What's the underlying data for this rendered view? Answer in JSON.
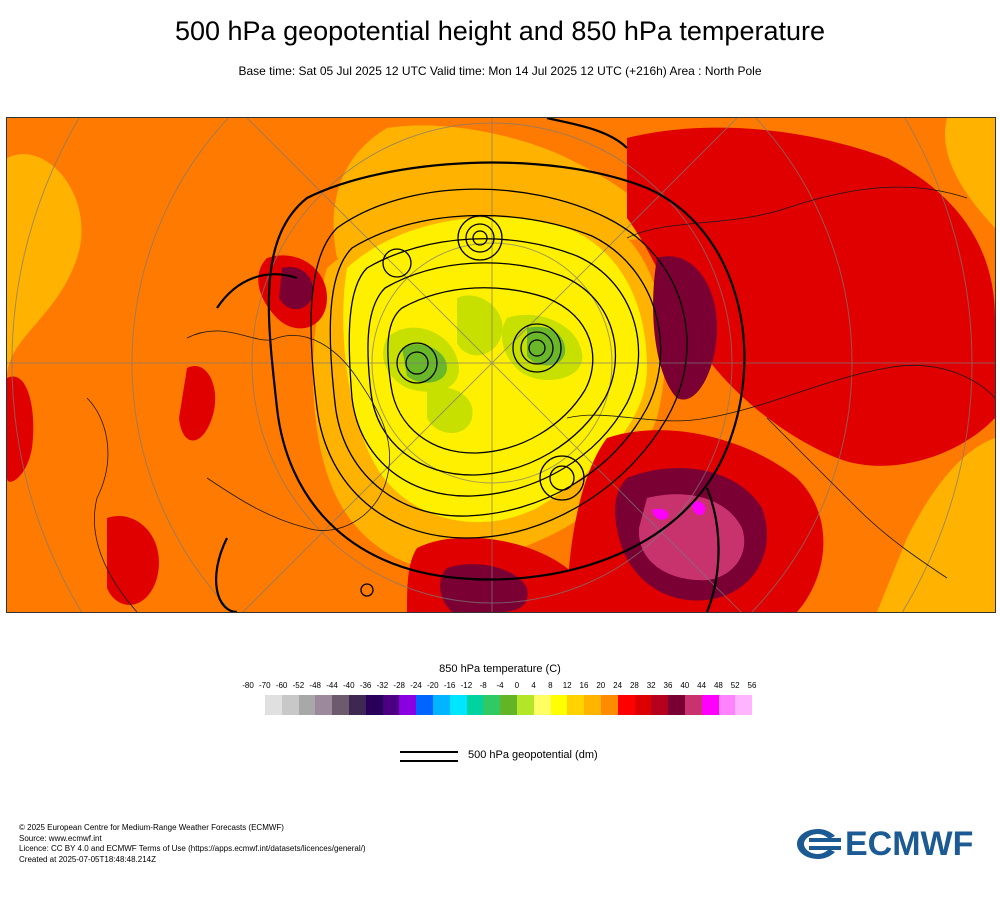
{
  "header": {
    "title": "500 hPa geopotential height and 850 hPa temperature",
    "subtitle": "Base time: Sat 05 Jul 2025 12 UTC Valid time: Mon 14 Jul 2025 12 UTC (+216h) Area : North Pole"
  },
  "map": {
    "area": "North Pole",
    "temperature_fill_colors": {
      "very_hot": "#7a0033",
      "hot": "#e00000",
      "warm": "#ff7a00",
      "mild": "#ffb300",
      "cool": "#fff000",
      "cold": "#c8e000",
      "very_cold": "#6ab82a",
      "extreme_hot": "#c8336e",
      "magenta": "#ff00ff"
    },
    "contour_color": "#000000"
  },
  "legend": {
    "temperature_title": "850 hPa temperature (C)",
    "ticks": [
      "-80",
      "-70",
      "-60",
      "-52",
      "-48",
      "-44",
      "-40",
      "-36",
      "-32",
      "-28",
      "-24",
      "-20",
      "-16",
      "-12",
      "-8",
      "-4",
      "0",
      "4",
      "8",
      "12",
      "16",
      "20",
      "24",
      "28",
      "32",
      "36",
      "40",
      "44",
      "48",
      "52",
      "56"
    ],
    "swatch_colors": [
      "#e0e0e0",
      "#c8c8c8",
      "#a8a8a8",
      "#9c8a9c",
      "#6e5a6e",
      "#3c2850",
      "#28005a",
      "#4b0082",
      "#8a00e0",
      "#0064ff",
      "#00b4ff",
      "#00e6ff",
      "#00d2a0",
      "#32c864",
      "#64b428",
      "#b4e628",
      "#ffff64",
      "#ffff00",
      "#ffd200",
      "#ffb400",
      "#ff8c00",
      "#ff0000",
      "#dc0000",
      "#b4001e",
      "#780032",
      "#c8326e",
      "#ff00ff",
      "#ff82ff",
      "#ffb4ff",
      "#e6c8e6",
      "#e6e6e6"
    ],
    "geopotential_label": "500 hPa geopotential (dm)"
  },
  "footer": {
    "credits": [
      "© 2025 European Centre for Medium-Range Weather Forecasts (ECMWF)",
      "Source: www.ecmwf.int",
      "Licence: CC BY 4.0 and ECMWF Terms of Use (https://apps.ecmwf.int/datasets/licences/general/)",
      "Created at 2025-07-05T18:48:48.214Z"
    ],
    "logo_text": "ECMWF",
    "logo_color": "#1c5a93"
  }
}
